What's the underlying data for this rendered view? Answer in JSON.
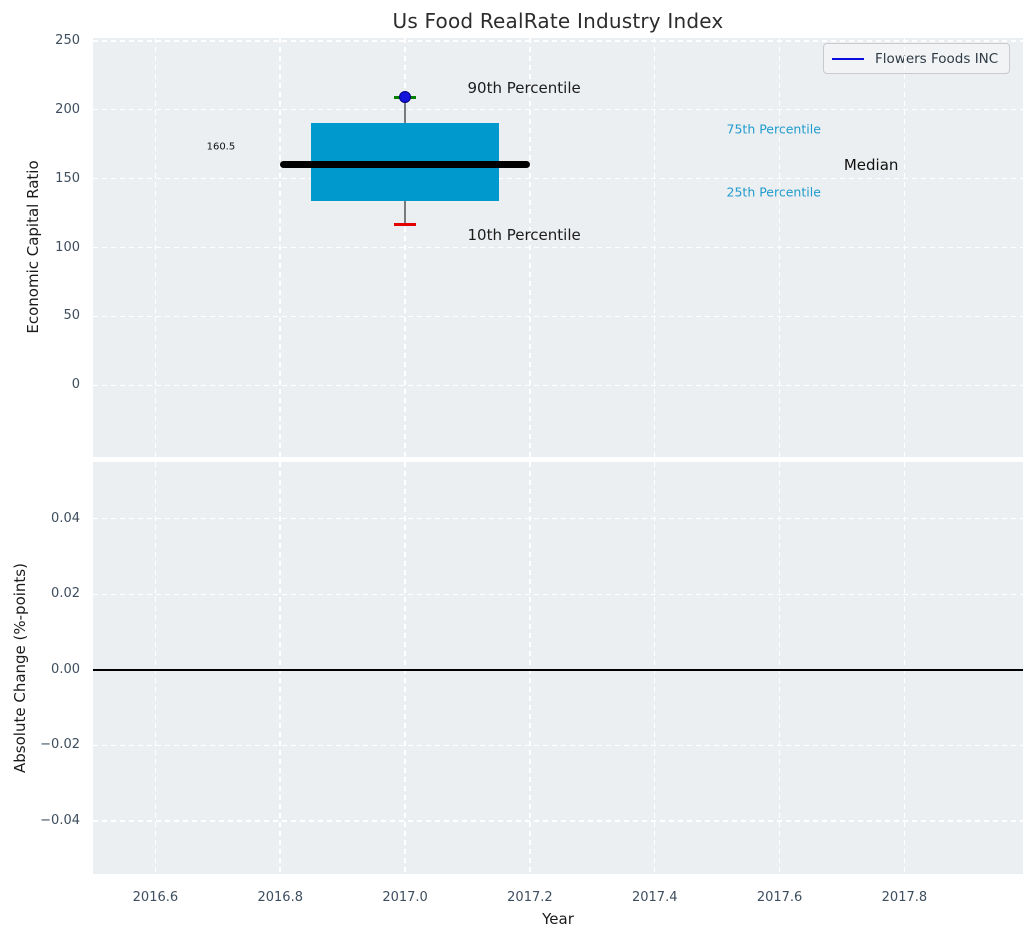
{
  "title": "Us Food RealRate Industry Index",
  "legend": {
    "label": "Flowers Foods INC",
    "line_color": "#0b0bdb"
  },
  "colors": {
    "figure_bg": "#ffffff",
    "axes_bg": "#eceff1",
    "grid": "#ffffff",
    "tick_label": "#3e4e5e",
    "axis_label": "#1b1b1b",
    "title": "#2d2d2d",
    "box_fill": "#0099ce",
    "median_line": "#000000",
    "whisker": "#7a7a7a",
    "cap_high": "#008000",
    "cap_low": "#e50000",
    "marker_fill": "#1414dc",
    "marker_edge": "#000082",
    "percentile_text": "#1f9bcd",
    "zero_line": "#000000"
  },
  "chart_data": [
    {
      "type": "boxplot",
      "title": "Us Food RealRate Industry Index",
      "ylabel": "Economic Capital Ratio",
      "xlabel": "",
      "xlim": [
        2016.5,
        2017.99
      ],
      "ylim": [
        -52,
        252
      ],
      "grid": true,
      "show_xtick_labels": false,
      "legend_position": "upper right",
      "legend_entries": [
        "Flowers Foods INC"
      ],
      "yticks": [
        {
          "v": 0,
          "label": "0"
        },
        {
          "v": 50,
          "label": "50"
        },
        {
          "v": 100,
          "label": "100"
        },
        {
          "v": 150,
          "label": "150"
        },
        {
          "v": 200,
          "label": "200"
        },
        {
          "v": 250,
          "label": "250"
        }
      ],
      "xticks": [
        {
          "v": 2016.6,
          "label": "2016.6"
        },
        {
          "v": 2016.8,
          "label": "2016.8"
        },
        {
          "v": 2017.0,
          "label": "2017.0"
        },
        {
          "v": 2017.2,
          "label": "2017.2"
        },
        {
          "v": 2017.4,
          "label": "2017.4"
        },
        {
          "v": 2017.6,
          "label": "2017.6"
        },
        {
          "v": 2017.8,
          "label": "2017.8"
        }
      ],
      "box": {
        "x_center": 2017.0,
        "box_x_range": [
          2016.85,
          2017.15
        ],
        "median_x_range": [
          2016.8,
          2017.2
        ],
        "p10": 117,
        "p25": 134,
        "median": 160.5,
        "p75": 190,
        "p90": 209,
        "cap_half_width": 0.018,
        "median_value_label": "160.5"
      },
      "series": [
        {
          "name": "Flowers Foods INC",
          "x": 2017.0,
          "y": 209,
          "marker": "circle"
        }
      ],
      "annotations": [
        {
          "name": "p90-percentile-label",
          "text": "90th Percentile",
          "x": 2017.1,
          "y": 216,
          "size": 15,
          "color": "#1c1c1c"
        },
        {
          "name": "p10-percentile-label",
          "text": "10th Percentile",
          "x": 2017.1,
          "y": 109,
          "size": 15,
          "color": "#1c1c1c"
        },
        {
          "name": "p75-percentile-label",
          "text": "75th Percentile",
          "x": 2017.515,
          "y": 186,
          "size": 12.5,
          "color": "#1f9bcd"
        },
        {
          "name": "p25-percentile-label",
          "text": "25th Percentile",
          "x": 2017.515,
          "y": 140,
          "size": 12.5,
          "color": "#1f9bcd"
        },
        {
          "name": "median-label",
          "text": "Median",
          "x": 2017.703,
          "y": 160,
          "size": 15,
          "color": "#111111"
        },
        {
          "name": "median-value-label",
          "text": "160.5",
          "x": 2016.682,
          "y": 173,
          "size": 10,
          "color": "#111111"
        }
      ]
    },
    {
      "type": "line",
      "ylabel": "Absolute Change (%-points)",
      "xlabel": "Year",
      "xlim": [
        2016.5,
        2017.99
      ],
      "ylim": [
        -0.054,
        0.055
      ],
      "grid": true,
      "show_xtick_labels": true,
      "yticks": [
        {
          "v": -0.04,
          "label": "−0.04"
        },
        {
          "v": -0.02,
          "label": "−0.02"
        },
        {
          "v": 0,
          "label": "0.00"
        },
        {
          "v": 0.02,
          "label": "0.02"
        },
        {
          "v": 0.04,
          "label": "0.04"
        }
      ],
      "xticks": [
        {
          "v": 2016.6,
          "label": "2016.6"
        },
        {
          "v": 2016.8,
          "label": "2016.8"
        },
        {
          "v": 2017.0,
          "label": "2017.0"
        },
        {
          "v": 2017.2,
          "label": "2017.2"
        },
        {
          "v": 2017.4,
          "label": "2017.4"
        },
        {
          "v": 2017.6,
          "label": "2017.6"
        },
        {
          "v": 2017.8,
          "label": "2017.8"
        }
      ],
      "zero_line_y": 0,
      "series": []
    }
  ]
}
